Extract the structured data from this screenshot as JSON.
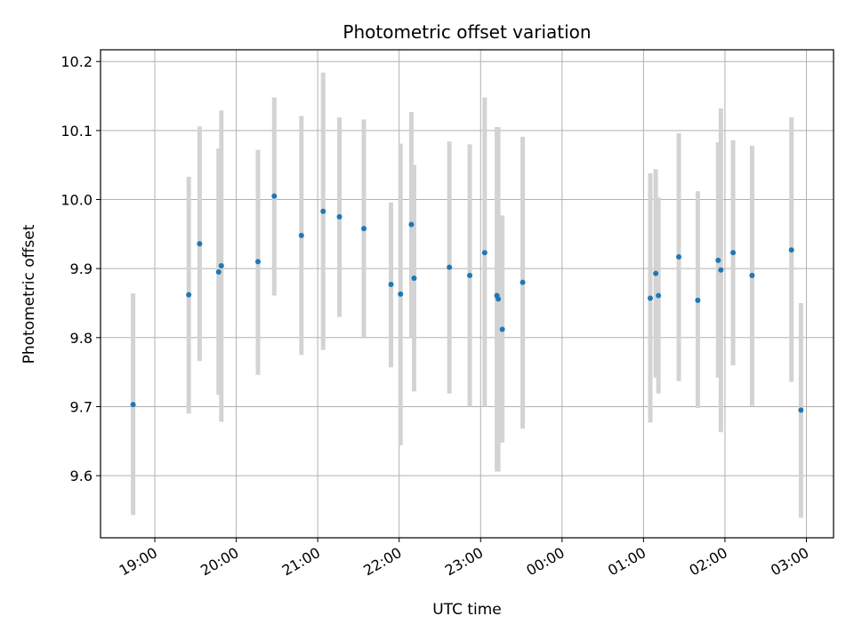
{
  "chart_data": {
    "type": "scatter",
    "title": "Photometric offset variation",
    "xlabel": "UTC time",
    "ylabel": "Photometric offset",
    "x_unit": "UTC time (HH:MM)",
    "xlim": [
      "18:20",
      "03:20"
    ],
    "ylim": [
      9.51,
      10.217
    ],
    "x_ticks": [
      "19:00",
      "20:00",
      "21:00",
      "22:00",
      "23:00",
      "00:00",
      "01:00",
      "02:00",
      "03:00"
    ],
    "y_ticks": [
      9.6,
      9.7,
      9.8,
      9.9,
      10.0,
      10.1,
      10.2
    ],
    "y_tick_labels": [
      "9.6",
      "9.7",
      "9.8",
      "9.9",
      "10.0",
      "10.1",
      "10.2"
    ],
    "grid": true,
    "marker_color": "#1f77b4",
    "errorbar_color": "#d3d3d3",
    "series": [
      {
        "points": [
          {
            "x": "18:44",
            "y": 9.703,
            "lo": 9.543,
            "hi": 9.864
          },
          {
            "x": "19:25",
            "y": 9.862,
            "lo": 9.69,
            "hi": 10.033
          },
          {
            "x": "19:33",
            "y": 9.936,
            "lo": 9.766,
            "hi": 10.106
          },
          {
            "x": "19:47",
            "y": 9.895,
            "lo": 9.717,
            "hi": 10.074
          },
          {
            "x": "19:49",
            "y": 9.904,
            "lo": 9.678,
            "hi": 10.129
          },
          {
            "x": "20:16",
            "y": 9.91,
            "lo": 9.746,
            "hi": 10.072
          },
          {
            "x": "20:28",
            "y": 10.005,
            "lo": 9.861,
            "hi": 10.148
          },
          {
            "x": "20:48",
            "y": 9.948,
            "lo": 9.775,
            "hi": 10.121
          },
          {
            "x": "21:04",
            "y": 9.983,
            "lo": 9.782,
            "hi": 10.184
          },
          {
            "x": "21:16",
            "y": 9.975,
            "lo": 9.83,
            "hi": 10.119
          },
          {
            "x": "21:34",
            "y": 9.958,
            "lo": 9.801,
            "hi": 10.116
          },
          {
            "x": "21:54",
            "y": 9.877,
            "lo": 9.757,
            "hi": 9.996
          },
          {
            "x": "22:01",
            "y": 9.863,
            "lo": 9.644,
            "hi": 10.081
          },
          {
            "x": "22:09",
            "y": 9.964,
            "lo": 9.8,
            "hi": 10.127
          },
          {
            "x": "22:11",
            "y": 9.886,
            "lo": 9.722,
            "hi": 10.05
          },
          {
            "x": "22:37",
            "y": 9.902,
            "lo": 9.719,
            "hi": 10.084
          },
          {
            "x": "22:52",
            "y": 9.89,
            "lo": 9.7,
            "hi": 10.08
          },
          {
            "x": "23:03",
            "y": 9.923,
            "lo": 9.7,
            "hi": 10.148
          },
          {
            "x": "23:12",
            "y": 9.861,
            "lo": 9.606,
            "hi": 10.105
          },
          {
            "x": "23:13",
            "y": 9.856,
            "lo": 9.606,
            "hi": 10.105
          },
          {
            "x": "23:16",
            "y": 9.812,
            "lo": 9.648,
            "hi": 9.977
          },
          {
            "x": "23:31",
            "y": 9.88,
            "lo": 9.668,
            "hi": 10.091
          },
          {
            "x": "01:05",
            "y": 9.857,
            "lo": 9.677,
            "hi": 10.038
          },
          {
            "x": "01:09",
            "y": 9.893,
            "lo": 9.742,
            "hi": 10.044
          },
          {
            "x": "01:11",
            "y": 9.861,
            "lo": 9.719,
            "hi": 10.003
          },
          {
            "x": "01:26",
            "y": 9.917,
            "lo": 9.737,
            "hi": 10.096
          },
          {
            "x": "01:40",
            "y": 9.854,
            "lo": 9.698,
            "hi": 10.012
          },
          {
            "x": "01:55",
            "y": 9.912,
            "lo": 9.742,
            "hi": 10.083
          },
          {
            "x": "01:57",
            "y": 9.898,
            "lo": 9.663,
            "hi": 10.132
          },
          {
            "x": "02:06",
            "y": 9.923,
            "lo": 9.76,
            "hi": 10.086
          },
          {
            "x": "02:20",
            "y": 9.89,
            "lo": 9.701,
            "hi": 10.078
          },
          {
            "x": "02:49",
            "y": 9.927,
            "lo": 9.736,
            "hi": 10.119
          },
          {
            "x": "02:56",
            "y": 9.695,
            "lo": 9.539,
            "hi": 9.85
          }
        ]
      }
    ]
  }
}
